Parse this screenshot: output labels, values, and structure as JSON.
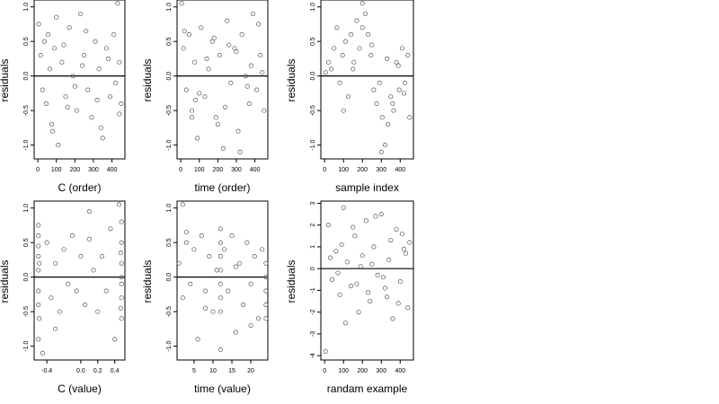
{
  "chart_data": [
    {
      "type": "scatter",
      "xlabel": "C (order)",
      "ylabel": "residuals",
      "xlim": [
        -20,
        470
      ],
      "ylim": [
        -1.2,
        1.1
      ],
      "xticks": [
        0,
        100,
        200,
        300,
        400
      ],
      "yticks": [
        -1.0,
        -0.5,
        0.0,
        0.5,
        1.0
      ],
      "ytick_labels": [
        "-1.0",
        "-0.5",
        "0.0",
        "0.5",
        "1.0"
      ],
      "hline": 0,
      "x": [
        5,
        15,
        25,
        35,
        45,
        55,
        65,
        75,
        90,
        110,
        130,
        150,
        170,
        190,
        210,
        230,
        250,
        270,
        290,
        310,
        330,
        350,
        370,
        390,
        410,
        420,
        430,
        440,
        450,
        80,
        140,
        200,
        260,
        320,
        380,
        440,
        100,
        160,
        240,
        340
      ],
      "y": [
        0.75,
        0.3,
        -0.2,
        0.5,
        -0.4,
        0.6,
        0.1,
        -0.7,
        0.4,
        -1.0,
        0.2,
        -0.3,
        0.7,
        0.0,
        -0.5,
        0.9,
        0.3,
        -0.2,
        -0.6,
        0.5,
        0.1,
        -0.9,
        0.4,
        -0.3,
        0.6,
        -0.1,
        1.05,
        0.2,
        -0.4,
        -0.8,
        0.45,
        -0.15,
        0.65,
        -0.35,
        0.25,
        -0.55,
        0.85,
        -0.45,
        0.15,
        -0.75
      ]
    },
    {
      "type": "scatter",
      "xlabel": "time (order)",
      "ylabel": "residuals",
      "xlim": [
        -20,
        470
      ],
      "ylim": [
        -1.2,
        1.1
      ],
      "xticks": [
        0,
        100,
        200,
        300,
        400
      ],
      "yticks": [
        -1.0,
        -0.5,
        0.0,
        0.5,
        1.0
      ],
      "ytick_labels": [
        "-1.0",
        "-0.5",
        "0.0",
        "0.5",
        "1.0"
      ],
      "hline": 0,
      "x": [
        5,
        15,
        30,
        45,
        60,
        75,
        90,
        110,
        130,
        150,
        170,
        190,
        210,
        230,
        250,
        270,
        290,
        310,
        330,
        350,
        370,
        390,
        410,
        430,
        450,
        20,
        80,
        140,
        200,
        260,
        320,
        380,
        440,
        100,
        180,
        240,
        300,
        360,
        420,
        60
      ],
      "y": [
        1.05,
        0.4,
        -0.2,
        0.6,
        -0.5,
        0.2,
        -0.9,
        0.7,
        -0.3,
        0.1,
        0.5,
        -0.6,
        0.3,
        -1.05,
        0.8,
        -0.1,
        0.4,
        -0.8,
        0.6,
        0.0,
        -0.4,
        0.9,
        -0.2,
        0.3,
        -0.5,
        0.65,
        -0.35,
        0.25,
        -0.7,
        0.45,
        -1.1,
        0.15,
        0.05,
        -0.25,
        0.55,
        -0.45,
        0.35,
        -0.15,
        0.75,
        -0.6
      ]
    },
    {
      "type": "scatter",
      "xlabel": "sample index",
      "ylabel": "residuals",
      "xlim": [
        -20,
        470
      ],
      "ylim": [
        -1.2,
        1.1
      ],
      "xticks": [
        0,
        100,
        200,
        300,
        400
      ],
      "yticks": [
        -1.0,
        -0.5,
        0.0,
        0.5,
        1.0
      ],
      "ytick_labels": [
        "-1.0",
        "-0.5",
        "0.0",
        "0.5",
        "1.0"
      ],
      "hline": 0,
      "x": [
        5,
        20,
        35,
        50,
        65,
        80,
        95,
        110,
        125,
        140,
        155,
        170,
        185,
        200,
        215,
        230,
        245,
        260,
        275,
        290,
        305,
        320,
        335,
        350,
        365,
        380,
        395,
        410,
        425,
        440,
        450,
        100,
        150,
        200,
        250,
        300,
        330,
        360,
        390,
        420
      ],
      "y": [
        0.05,
        0.2,
        0.1,
        0.4,
        0.7,
        -0.1,
        0.3,
        0.5,
        -0.3,
        0.6,
        0.2,
        0.8,
        0.4,
        1.05,
        0.9,
        0.6,
        0.3,
        -0.2,
        -0.4,
        -0.1,
        -0.6,
        -1.0,
        -0.7,
        -0.3,
        -0.5,
        0.2,
        -0.2,
        0.4,
        -0.1,
        0.3,
        -0.6,
        -0.5,
        0.1,
        0.7,
        0.45,
        -1.1,
        0.25,
        -0.4,
        0.15,
        -0.25
      ]
    },
    {
      "type": "scatter",
      "xlabel": "C (value)",
      "ylabel": "residuals",
      "xlim": [
        -0.55,
        0.52
      ],
      "ylim": [
        -1.2,
        1.1
      ],
      "xticks": [
        -0.4,
        0.0,
        0.2,
        0.4
      ],
      "xtick_labels": [
        "-0.4",
        "0.0",
        "0.2",
        "0.4"
      ],
      "yticks": [
        -1.0,
        -0.5,
        0.0,
        0.5,
        1.0
      ],
      "ytick_labels": [
        "-1.0",
        "-0.5",
        "0.0",
        "0.5",
        "1.0"
      ],
      "hline": 0,
      "x": [
        -0.5,
        -0.5,
        -0.5,
        -0.5,
        -0.5,
        -0.5,
        -0.5,
        -0.5,
        -0.49,
        -0.49,
        -0.45,
        -0.4,
        -0.35,
        -0.3,
        -0.25,
        -0.2,
        -0.15,
        -0.1,
        -0.05,
        0.0,
        0.05,
        0.1,
        0.15,
        0.2,
        0.25,
        0.3,
        0.35,
        0.4,
        0.45,
        0.48,
        0.48,
        0.48,
        0.48,
        0.48,
        0.48,
        0.48,
        0.47,
        0.47,
        -0.3,
        0.1
      ],
      "y": [
        0.75,
        0.6,
        0.3,
        0.1,
        -0.2,
        -0.4,
        -0.9,
        0.45,
        -0.6,
        0.2,
        -1.1,
        0.5,
        -0.3,
        0.2,
        -0.5,
        0.4,
        -0.1,
        0.6,
        -0.2,
        0.3,
        -0.4,
        0.95,
        0.1,
        -0.5,
        0.3,
        -0.2,
        0.7,
        -0.9,
        1.05,
        0.8,
        0.5,
        0.2,
        0.0,
        -0.1,
        -0.3,
        -0.6,
        0.35,
        -0.45,
        -0.75,
        0.55
      ]
    },
    {
      "type": "scatter",
      "xlabel": "time (value)",
      "ylabel": "residuals",
      "xlim": [
        0.5,
        24.5
      ],
      "ylim": [
        -1.2,
        1.1
      ],
      "xticks": [
        5,
        10,
        15,
        20
      ],
      "yticks": [
        -1.0,
        -0.5,
        0.0,
        0.5,
        1.0
      ],
      "ytick_labels": [
        "-1.0",
        "-0.5",
        "0.0",
        "0.5",
        "1.0"
      ],
      "hline": 0,
      "x": [
        1,
        2,
        2,
        3,
        4,
        5,
        6,
        7,
        8,
        9,
        10,
        11,
        12,
        12,
        12,
        12,
        12,
        12,
        12,
        12,
        13,
        14,
        15,
        16,
        17,
        18,
        19,
        20,
        21,
        22,
        23,
        24,
        24,
        24,
        24,
        24,
        3,
        8,
        16,
        20
      ],
      "y": [
        0.2,
        1.05,
        -0.3,
        0.5,
        -0.1,
        0.4,
        -0.9,
        0.6,
        -0.2,
        0.3,
        -0.5,
        0.1,
        0.7,
        0.5,
        0.3,
        0.1,
        -0.1,
        -0.3,
        -0.5,
        -1.05,
        0.4,
        -0.2,
        0.6,
        -0.8,
        0.2,
        -0.4,
        0.5,
        -0.1,
        0.3,
        -0.6,
        0.4,
        0.2,
        0.0,
        -0.2,
        -0.4,
        -0.6,
        0.65,
        -0.45,
        0.15,
        -0.7
      ]
    },
    {
      "type": "scatter",
      "xlabel": "randam example",
      "ylabel": "residuals",
      "xlim": [
        -20,
        470
      ],
      "ylim": [
        -4.2,
        3.1
      ],
      "xticks": [
        0,
        100,
        200,
        300,
        400
      ],
      "yticks": [
        -4,
        -3,
        -2,
        -1,
        0,
        1,
        2,
        3
      ],
      "ytick_labels": [
        "-4",
        "-3",
        "-2",
        "-1",
        "0",
        "1",
        "2",
        "3"
      ],
      "hline": 0,
      "x": [
        5,
        20,
        40,
        60,
        80,
        100,
        120,
        140,
        160,
        180,
        200,
        220,
        240,
        260,
        280,
        300,
        320,
        340,
        360,
        380,
        400,
        420,
        440,
        450,
        30,
        70,
        110,
        150,
        190,
        230,
        270,
        310,
        350,
        390,
        430,
        90,
        170,
        250,
        330,
        410
      ],
      "y": [
        -3.8,
        2.0,
        -0.5,
        0.8,
        -1.2,
        2.8,
        0.3,
        -0.8,
        1.5,
        -2.0,
        0.6,
        2.2,
        -1.5,
        1.0,
        -0.3,
        2.5,
        -0.9,
        0.4,
        -2.3,
        1.8,
        -0.6,
        0.9,
        -1.8,
        1.2,
        0.5,
        -0.2,
        -2.5,
        1.9,
        0.1,
        -1.1,
        2.4,
        -0.4,
        1.3,
        -1.6,
        0.7,
        1.1,
        -0.7,
        0.2,
        -1.3,
        1.6
      ]
    }
  ]
}
